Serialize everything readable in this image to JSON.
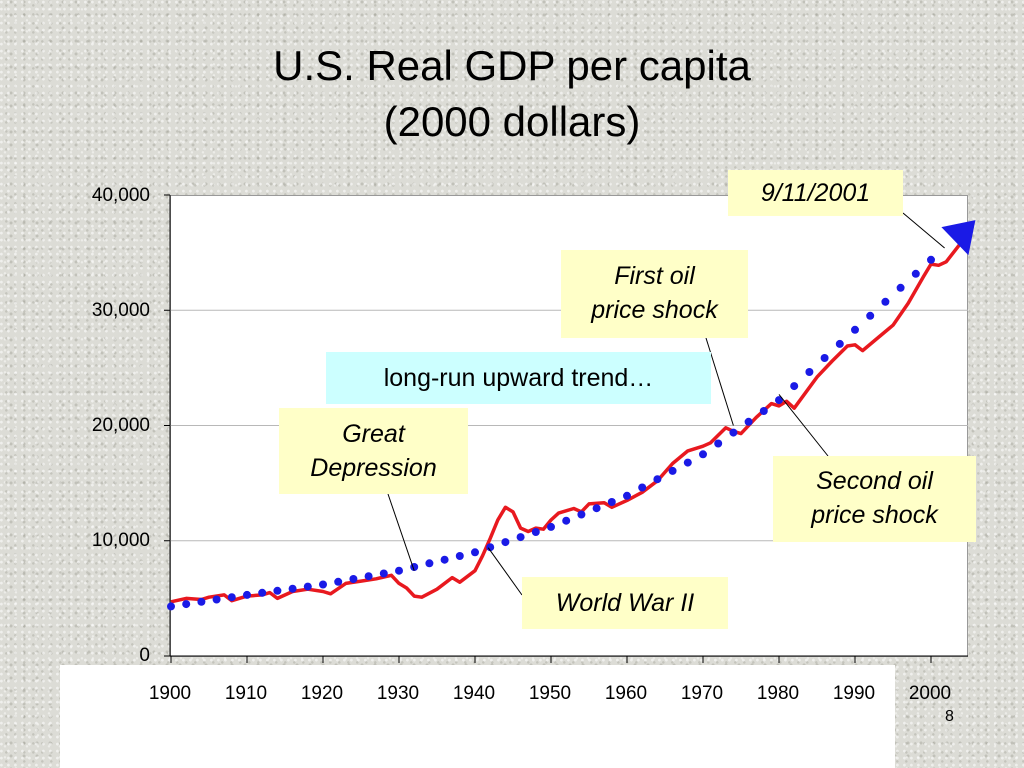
{
  "slide": {
    "title_line1": "U.S. Real GDP per capita",
    "title_line2": "(2000 dollars)",
    "page_number": "8"
  },
  "colors": {
    "actual_line": "#e8191f",
    "trend_dots": "#1a1ae6",
    "callout_yellow": "#ffffc8",
    "callout_cyan": "#ccffff"
  },
  "chart_data": {
    "type": "line",
    "title": "U.S. Real GDP per capita (2000 dollars)",
    "xlabel": "",
    "ylabel": "",
    "xlim": [
      1900,
      2005
    ],
    "ylim": [
      0,
      40000
    ],
    "x_ticks": [
      "1900",
      "1910",
      "1920",
      "1930",
      "1940",
      "1950",
      "1960",
      "1970",
      "1980",
      "1990",
      "2000"
    ],
    "y_ticks": [
      "0",
      "10,000",
      "20,000",
      "30,000",
      "40,000"
    ],
    "grid": true,
    "legend": "none",
    "series": [
      {
        "style": "solid",
        "color": "#e8191f",
        "points": [
          [
            1900,
            4700
          ],
          [
            1902,
            5000
          ],
          [
            1904,
            4900
          ],
          [
            1905,
            5100
          ],
          [
            1907,
            5300
          ],
          [
            1908,
            4800
          ],
          [
            1910,
            5200
          ],
          [
            1912,
            5300
          ],
          [
            1913,
            5500
          ],
          [
            1914,
            5000
          ],
          [
            1916,
            5600
          ],
          [
            1918,
            5800
          ],
          [
            1920,
            5600
          ],
          [
            1921,
            5400
          ],
          [
            1923,
            6300
          ],
          [
            1925,
            6500
          ],
          [
            1927,
            6700
          ],
          [
            1929,
            7000
          ],
          [
            1930,
            6300
          ],
          [
            1931,
            5900
          ],
          [
            1932,
            5200
          ],
          [
            1933,
            5100
          ],
          [
            1935,
            5800
          ],
          [
            1937,
            6800
          ],
          [
            1938,
            6400
          ],
          [
            1940,
            7400
          ],
          [
            1941,
            8700
          ],
          [
            1942,
            10200
          ],
          [
            1943,
            11800
          ],
          [
            1944,
            12900
          ],
          [
            1945,
            12500
          ],
          [
            1946,
            11100
          ],
          [
            1947,
            10800
          ],
          [
            1948,
            11100
          ],
          [
            1949,
            11000
          ],
          [
            1950,
            11800
          ],
          [
            1951,
            12400
          ],
          [
            1953,
            12800
          ],
          [
            1954,
            12500
          ],
          [
            1955,
            13200
          ],
          [
            1957,
            13300
          ],
          [
            1958,
            12900
          ],
          [
            1960,
            13500
          ],
          [
            1962,
            14200
          ],
          [
            1964,
            15200
          ],
          [
            1966,
            16700
          ],
          [
            1968,
            17800
          ],
          [
            1970,
            18200
          ],
          [
            1971,
            18500
          ],
          [
            1973,
            19800
          ],
          [
            1974,
            19500
          ],
          [
            1975,
            19300
          ],
          [
            1977,
            20700
          ],
          [
            1979,
            21900
          ],
          [
            1980,
            21700
          ],
          [
            1981,
            22100
          ],
          [
            1982,
            21500
          ],
          [
            1983,
            22400
          ],
          [
            1985,
            24200
          ],
          [
            1987,
            25600
          ],
          [
            1989,
            26900
          ],
          [
            1990,
            27000
          ],
          [
            1991,
            26500
          ],
          [
            1993,
            27600
          ],
          [
            1995,
            28700
          ],
          [
            1997,
            30600
          ],
          [
            1999,
            32900
          ],
          [
            2000,
            34000
          ],
          [
            2001,
            33900
          ],
          [
            2002,
            34200
          ],
          [
            2004,
            35900
          ],
          [
            2005,
            36500
          ]
        ]
      },
      {
        "style": "dotted",
        "color": "#1a1ae6",
        "points": [
          [
            1900,
            4300
          ],
          [
            1910,
            5300
          ],
          [
            1920,
            6200
          ],
          [
            1930,
            7400
          ],
          [
            1940,
            9000
          ],
          [
            1950,
            11200
          ],
          [
            1960,
            13900
          ],
          [
            1970,
            17500
          ],
          [
            1980,
            22200
          ],
          [
            1990,
            28300
          ],
          [
            2003,
            36200
          ]
        ]
      }
    ],
    "annotations": [
      {
        "text": "9/11/2001",
        "x": 2002,
        "y": 35500,
        "marker": "blue-arrowhead"
      },
      {
        "text": "First oil price shock",
        "x": 1974,
        "y": 20000
      },
      {
        "text": "Second oil price shock",
        "x": 1980,
        "y": 22800
      },
      {
        "text": "Great Depression",
        "x": 1932,
        "y": 7500
      },
      {
        "text": "World War II",
        "x": 1942,
        "y": 9200
      },
      {
        "text": "long-run upward trend…"
      }
    ]
  },
  "callouts": {
    "sept11": "9/11/2001",
    "first_oil_line1": "First oil",
    "first_oil_line2": "price shock",
    "trend": "long-run upward trend…",
    "great_dep_line1": "Great",
    "great_dep_line2": "Depression",
    "second_oil_line1": "Second oil",
    "second_oil_line2": "price shock",
    "ww2": "World War II"
  }
}
